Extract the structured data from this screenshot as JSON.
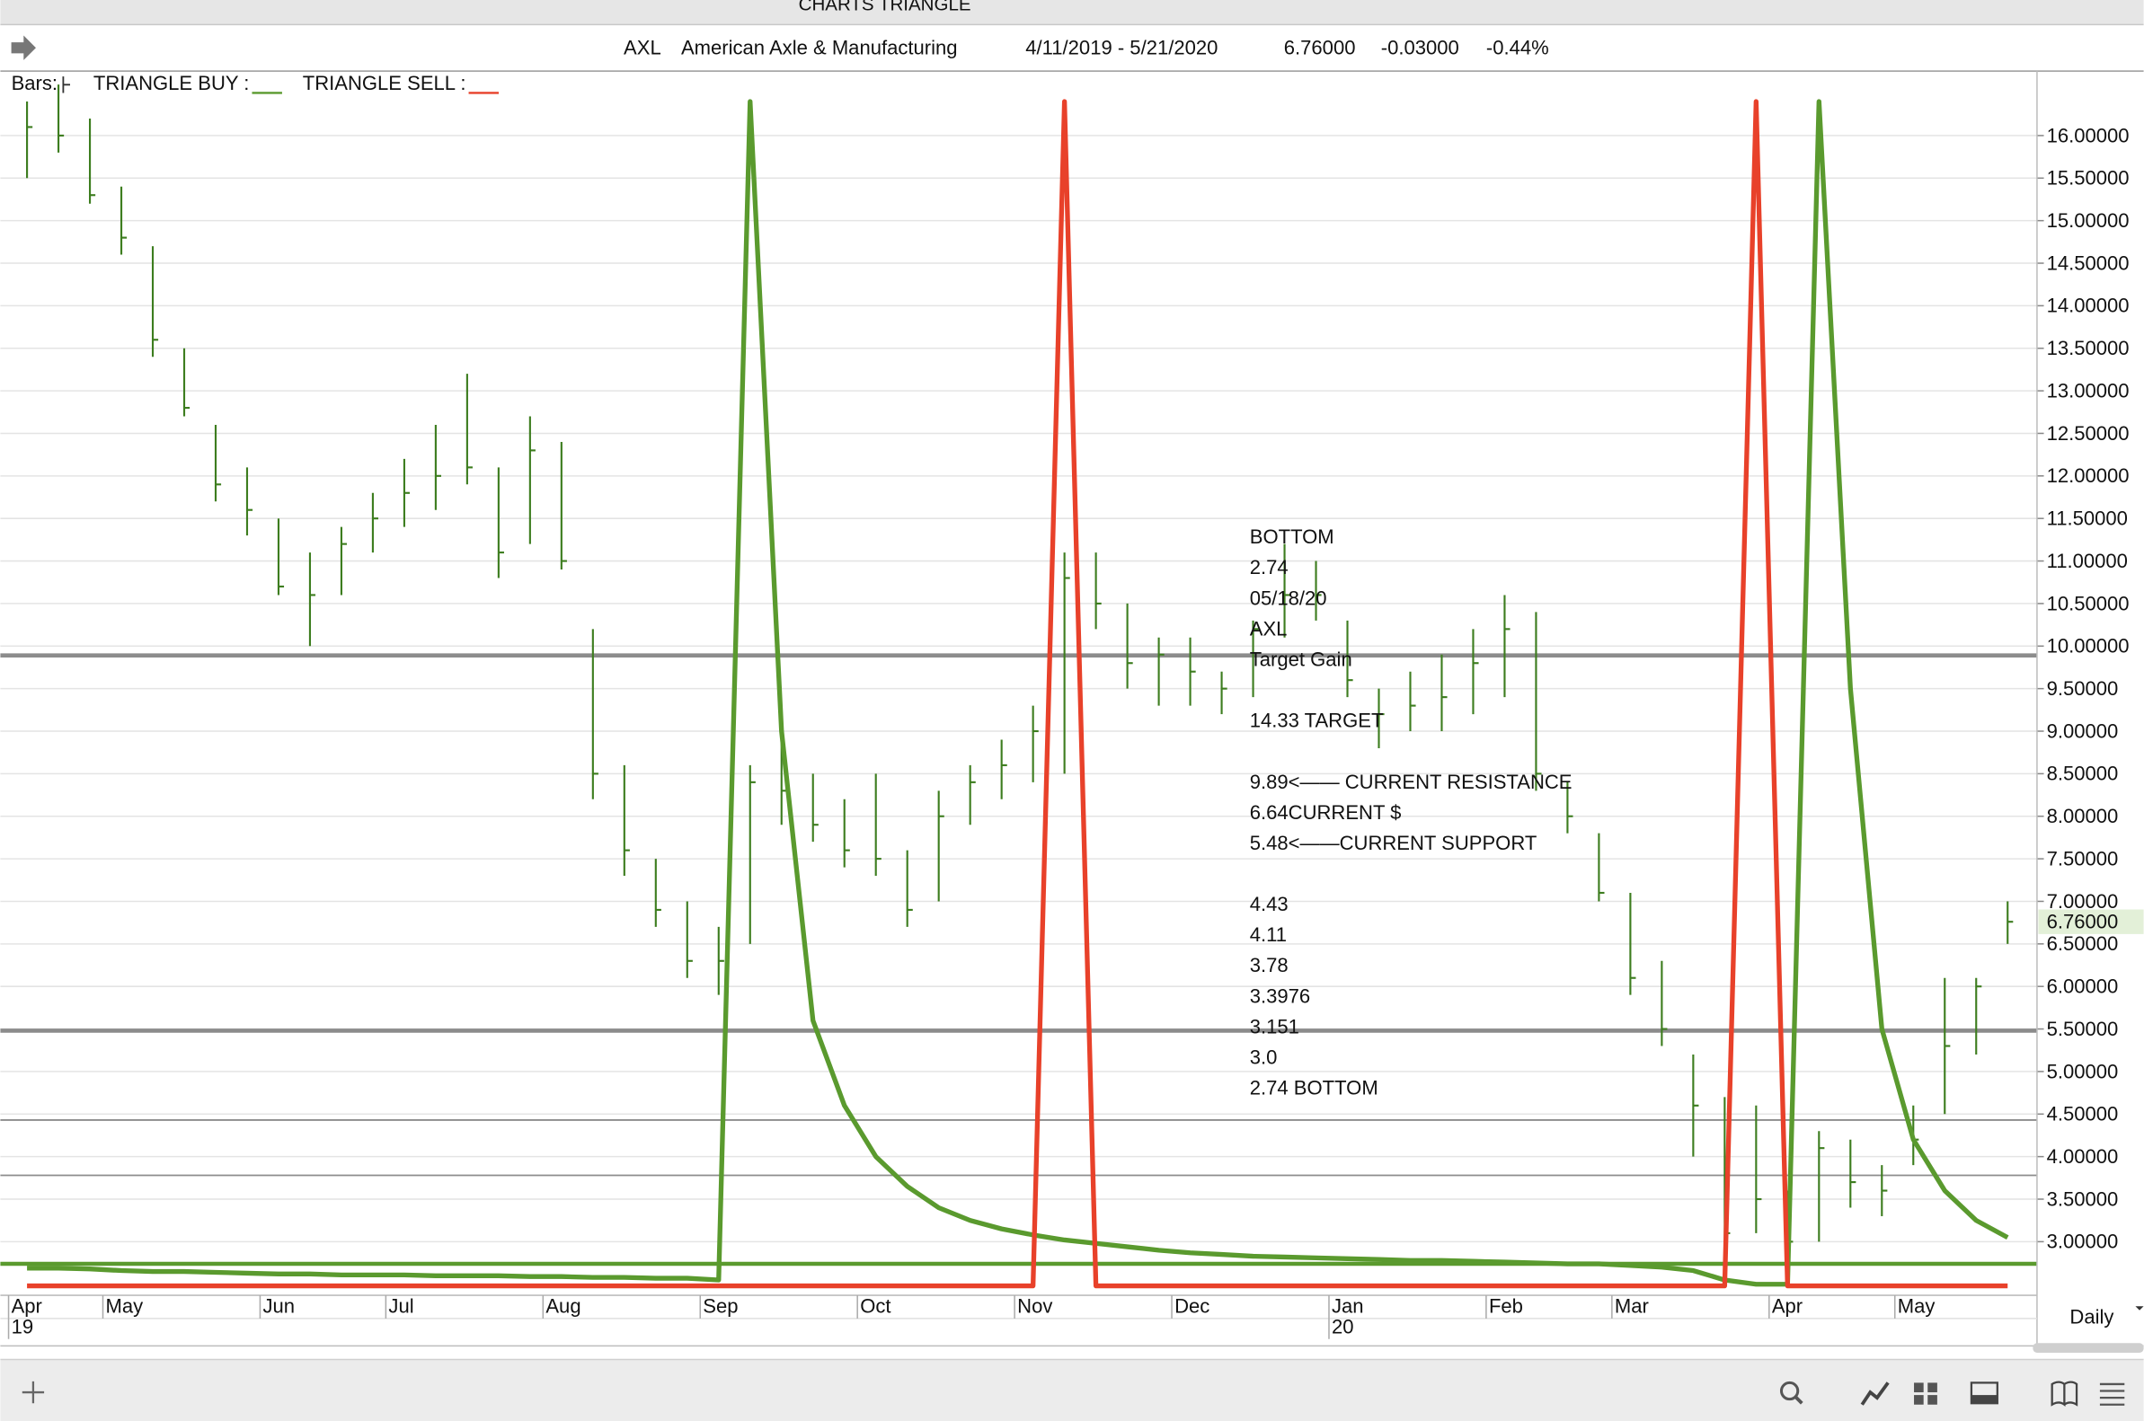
{
  "app": {
    "window_title": "CHARTS TRIANGLE",
    "interval": "Daily"
  },
  "header": {
    "symbol": "AXL",
    "company": "American Axle & Manufacturing",
    "date_range": "4/11/2019 - 5/21/2020",
    "last": "6.76000",
    "change": "-0.03000",
    "change_pct": "-0.44%"
  },
  "chart_data": {
    "type": "ohlc",
    "bars_label": "Bars:",
    "color": "#3d7d1f",
    "categories": [
      "Apr",
      null,
      null,
      "May",
      null,
      null,
      null,
      null,
      "Jun",
      null,
      null,
      null,
      "Jul",
      null,
      null,
      null,
      null,
      "Aug",
      null,
      null,
      null,
      null,
      "Sep",
      null,
      null,
      null,
      null,
      "Oct",
      null,
      null,
      null,
      null,
      "Nov",
      null,
      null,
      null,
      null,
      "Dec",
      null,
      null,
      null,
      null,
      "Jan",
      null,
      null,
      null,
      null,
      "Feb",
      null,
      null,
      null,
      "Mar",
      null,
      null,
      null,
      null,
      "Apr",
      null,
      null,
      null,
      "May",
      null,
      null,
      null
    ],
    "year_labels": [
      "19",
      "20"
    ],
    "high": [
      16.4,
      16.6,
      16.2,
      15.4,
      14.7,
      13.5,
      12.6,
      12.1,
      11.5,
      11.1,
      11.4,
      11.8,
      12.2,
      12.6,
      13.2,
      12.1,
      12.7,
      12.4,
      10.2,
      8.6,
      7.5,
      7.0,
      6.7,
      8.6,
      9.2,
      8.5,
      8.2,
      8.5,
      7.6,
      8.3,
      8.6,
      8.9,
      9.3,
      11.1,
      11.1,
      10.5,
      10.1,
      10.1,
      9.7,
      10.3,
      11.2,
      11.0,
      10.3,
      9.5,
      9.7,
      9.9,
      10.2,
      10.6,
      10.4,
      8.4,
      7.8,
      7.1,
      6.3,
      5.2,
      4.7,
      4.6,
      3.6,
      4.3,
      4.2,
      3.9,
      4.6,
      6.1,
      6.1,
      7.0
    ],
    "low": [
      15.5,
      15.8,
      15.2,
      14.6,
      13.4,
      12.7,
      11.7,
      11.3,
      10.6,
      10.0,
      10.6,
      11.1,
      11.4,
      11.6,
      11.9,
      10.8,
      11.2,
      10.9,
      8.2,
      7.3,
      6.7,
      6.1,
      5.9,
      6.5,
      7.9,
      7.7,
      7.4,
      7.3,
      6.7,
      7.0,
      7.9,
      8.2,
      8.4,
      8.5,
      10.2,
      9.5,
      9.3,
      9.3,
      9.2,
      9.4,
      10.1,
      10.3,
      9.4,
      8.8,
      9.0,
      9.0,
      9.2,
      9.4,
      8.3,
      7.8,
      7.0,
      5.9,
      5.3,
      4.0,
      2.8,
      3.1,
      2.74,
      3.0,
      3.4,
      3.3,
      3.9,
      4.5,
      5.2,
      6.5
    ],
    "close": [
      16.1,
      16.0,
      15.3,
      14.8,
      13.6,
      12.8,
      11.9,
      11.6,
      10.7,
      10.6,
      11.2,
      11.5,
      11.8,
      12.0,
      12.1,
      11.1,
      12.3,
      11.0,
      8.5,
      7.6,
      6.9,
      6.3,
      6.3,
      8.4,
      8.3,
      7.9,
      7.6,
      7.5,
      6.9,
      8.0,
      8.4,
      8.6,
      9.0,
      10.8,
      10.5,
      9.8,
      9.9,
      9.7,
      9.5,
      10.2,
      10.6,
      10.6,
      9.6,
      9.2,
      9.3,
      9.4,
      9.8,
      10.2,
      8.5,
      8.0,
      7.1,
      6.1,
      5.5,
      4.6,
      3.1,
      3.5,
      3.0,
      4.1,
      3.7,
      3.6,
      4.2,
      5.3,
      6.0,
      6.76
    ],
    "series": [
      {
        "name": "TRIANGLE BUY :",
        "color": "#5a9a2e",
        "values": [
          2.69,
          2.69,
          2.68,
          2.66,
          2.65,
          2.65,
          2.64,
          2.63,
          2.62,
          2.62,
          2.61,
          2.61,
          2.61,
          2.6,
          2.6,
          2.6,
          2.59,
          2.59,
          2.58,
          2.58,
          2.57,
          2.57,
          2.55,
          16.4,
          9.0,
          5.6,
          4.6,
          4.0,
          3.65,
          3.4,
          3.25,
          3.15,
          3.08,
          3.02,
          2.98,
          2.94,
          2.9,
          2.87,
          2.85,
          2.83,
          2.82,
          2.81,
          2.8,
          2.79,
          2.78,
          2.78,
          2.77,
          2.76,
          2.75,
          2.74,
          2.74,
          2.72,
          2.7,
          2.66,
          2.55,
          2.5,
          2.5,
          16.4,
          9.5,
          5.5,
          4.2,
          3.6,
          3.25,
          3.05
        ]
      },
      {
        "name": "TRIANGLE SELL :",
        "color": "#e8412a",
        "values": [
          2.48,
          2.48,
          2.48,
          2.48,
          2.48,
          2.48,
          2.48,
          2.48,
          2.48,
          2.48,
          2.48,
          2.48,
          2.48,
          2.48,
          2.48,
          2.48,
          2.48,
          2.48,
          2.48,
          2.48,
          2.48,
          2.48,
          2.48,
          2.48,
          2.48,
          2.48,
          2.48,
          2.48,
          2.48,
          2.48,
          2.48,
          2.48,
          2.48,
          16.4,
          2.48,
          2.48,
          2.48,
          2.48,
          2.48,
          2.48,
          2.48,
          2.48,
          2.48,
          2.48,
          2.48,
          2.48,
          2.48,
          2.48,
          2.48,
          2.48,
          2.48,
          2.48,
          2.48,
          2.48,
          2.48,
          16.4,
          2.48,
          2.48,
          2.48,
          2.48,
          2.48,
          2.48,
          2.48,
          2.48
        ]
      }
    ],
    "levels": [
      {
        "value": 9.89,
        "color": "#8c8c8c",
        "style": "heavy"
      },
      {
        "value": 5.48,
        "color": "#8c8c8c",
        "style": "heavy"
      },
      {
        "value": 4.43,
        "color": "#8c8c8c",
        "style": "light"
      },
      {
        "value": 3.78,
        "color": "#8c8c8c",
        "style": "light"
      },
      {
        "value": 2.74,
        "color": "#5a9a2e",
        "style": "heavy"
      }
    ],
    "annotation_blocks": [
      [
        "BOTTOM",
        "2.74",
        "05/18/20",
        "AXL",
        "Target Gain"
      ],
      [
        "14.33 TARGET"
      ],
      [
        "9.89<—— CURRENT RESISTANCE",
        "6.64CURRENT $",
        "5.48<——CURRENT SUPPORT"
      ],
      [
        "4.43",
        "4.11",
        "3.78",
        "3.3976",
        "3.151",
        "3.0",
        "2.74 BOTTOM"
      ]
    ],
    "ylim": [
      2.37,
      16.71
    ],
    "yticks": [
      {
        "value": 3,
        "label": "3.00000"
      },
      {
        "value": 3.5,
        "label": "3.50000"
      },
      {
        "value": 4,
        "label": "4.00000"
      },
      {
        "value": 4.5,
        "label": "4.50000"
      },
      {
        "value": 5,
        "label": "5.00000"
      },
      {
        "value": 5.5,
        "label": "5.50000"
      },
      {
        "value": 6,
        "label": "6.00000"
      },
      {
        "value": 6.5,
        "label": "6.50000"
      },
      {
        "value": 7,
        "label": "7.00000"
      },
      {
        "value": 7.5,
        "label": "7.50000"
      },
      {
        "value": 8,
        "label": "8.00000"
      },
      {
        "value": 8.5,
        "label": "8.50000"
      },
      {
        "value": 9,
        "label": "9.00000"
      },
      {
        "value": 9.5,
        "label": "9.50000"
      },
      {
        "value": 10,
        "label": "10.00000"
      },
      {
        "value": 10.5,
        "label": "10.50000"
      },
      {
        "value": 11,
        "label": "11.00000"
      },
      {
        "value": 11.5,
        "label": "11.50000"
      },
      {
        "value": 12,
        "label": "12.00000"
      },
      {
        "value": 12.5,
        "label": "12.50000"
      },
      {
        "value": 13,
        "label": "13.00000"
      },
      {
        "value": 13.5,
        "label": "13.50000"
      },
      {
        "value": 14,
        "label": "14.00000"
      },
      {
        "value": 14.5,
        "label": "14.50000"
      },
      {
        "value": 15,
        "label": "15.00000"
      },
      {
        "value": 15.5,
        "label": "15.50000"
      },
      {
        "value": 16,
        "label": "16.00000"
      }
    ],
    "grid": true,
    "last_price_color": "#e3f0d8"
  }
}
